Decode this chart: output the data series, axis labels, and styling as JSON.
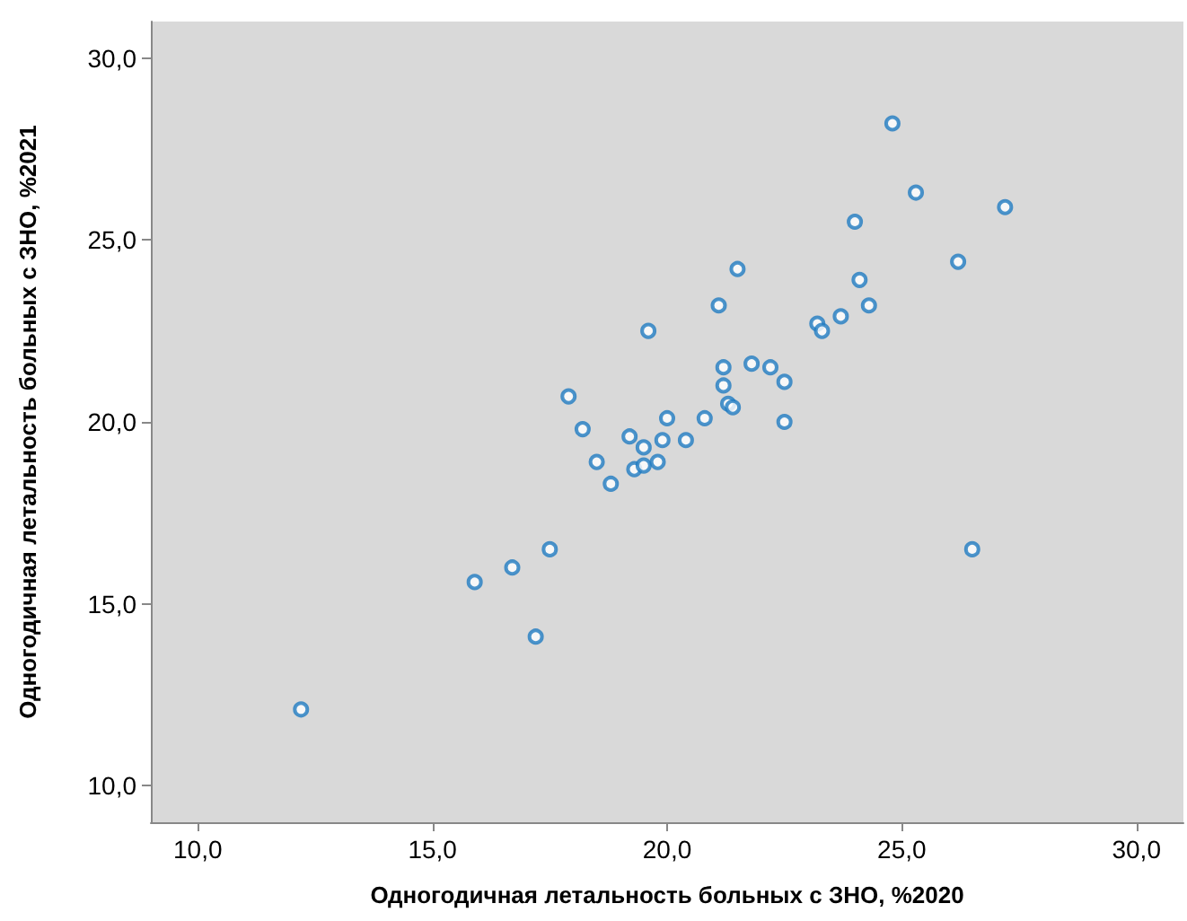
{
  "chart_data": {
    "type": "scatter",
    "xlabel": "Одногодичная летальность больных с ЗНО, %2020",
    "ylabel": "Одногодичная летальность больных с ЗНО, %2021",
    "xlim": [
      9,
      31
    ],
    "ylim": [
      9,
      31
    ],
    "xticks": [
      {
        "value": 10,
        "label": "10,0"
      },
      {
        "value": 15,
        "label": "15,0"
      },
      {
        "value": 20,
        "label": "20,0"
      },
      {
        "value": 25,
        "label": "25,0"
      },
      {
        "value": 30,
        "label": "30,0"
      }
    ],
    "yticks": [
      {
        "value": 10,
        "label": "10,0"
      },
      {
        "value": 15,
        "label": "15,0"
      },
      {
        "value": 20,
        "label": "20,0"
      },
      {
        "value": 25,
        "label": "25,0"
      },
      {
        "value": 30,
        "label": "30,0"
      }
    ],
    "grid": false,
    "marker": "circle",
    "series": [
      {
        "color": "#1f7bc0",
        "x": [
          12.2,
          15.9,
          16.7,
          17.5,
          17.2,
          17.9,
          18.2,
          18.5,
          18.8,
          19.2,
          19.5,
          19.3,
          19.5,
          19.6,
          19.8,
          19.9,
          20.0,
          20.4,
          20.8,
          21.1,
          21.2,
          21.2,
          21.3,
          21.4,
          21.5,
          21.8,
          22.2,
          22.5,
          22.5,
          23.2,
          23.3,
          23.7,
          24.1,
          24.3,
          24.0,
          24.8,
          25.3,
          26.2,
          27.2,
          26.5
        ],
        "values": [
          12.1,
          15.6,
          16.0,
          16.5,
          14.1,
          20.7,
          19.8,
          18.9,
          18.3,
          19.6,
          19.3,
          18.7,
          18.8,
          22.5,
          18.9,
          19.5,
          20.1,
          19.5,
          20.1,
          23.2,
          21.5,
          21.0,
          20.5,
          20.4,
          24.2,
          21.6,
          21.5,
          21.1,
          20.0,
          22.7,
          22.5,
          22.9,
          23.9,
          23.2,
          25.5,
          28.2,
          26.3,
          24.4,
          25.9,
          16.5
        ]
      }
    ]
  }
}
